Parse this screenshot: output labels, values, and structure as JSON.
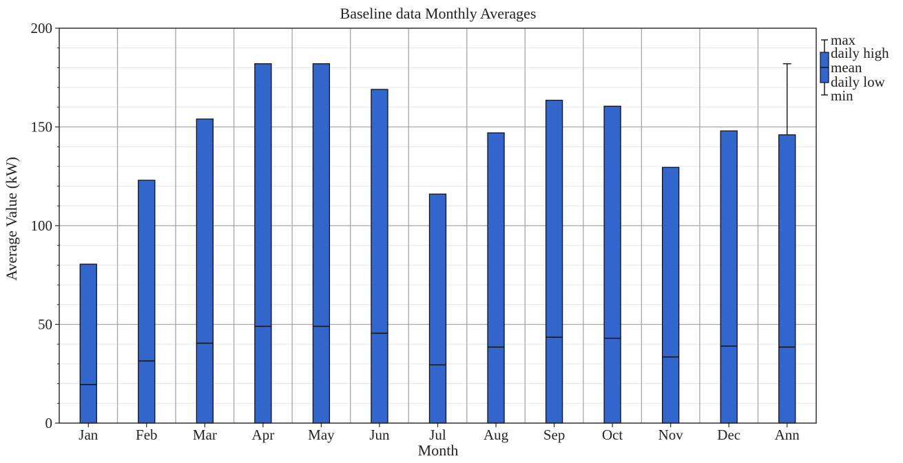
{
  "chart_data": {
    "type": "bar",
    "title": "Baseline data Monthly Averages",
    "xlabel": "Month",
    "ylabel": "Average Value (kW)",
    "ylim": [
      0,
      200
    ],
    "yticks": [
      0,
      50,
      100,
      150,
      200
    ],
    "grid": true,
    "legend_position": "right",
    "categories": [
      "Jan",
      "Feb",
      "Mar",
      "Apr",
      "May",
      "Jun",
      "Jul",
      "Aug",
      "Sep",
      "Oct",
      "Nov",
      "Dec",
      "Ann"
    ],
    "series": [
      {
        "name": "daily low",
        "values": [
          0,
          0,
          0,
          0,
          0,
          0,
          0,
          0,
          0,
          0,
          0,
          0,
          0
        ]
      },
      {
        "name": "mean",
        "values": [
          19.5,
          31.5,
          40.5,
          49,
          49,
          45.5,
          29.5,
          38.5,
          43.5,
          43,
          33.5,
          39,
          38.5
        ]
      },
      {
        "name": "daily high",
        "values": [
          80.5,
          123,
          154,
          182,
          182,
          169,
          116,
          147,
          163.5,
          160.5,
          129.5,
          148,
          146
        ]
      }
    ],
    "annual_whisker": {
      "category": "Ann",
      "max": 182,
      "min": 0
    },
    "legend_entries": [
      "max",
      "daily high",
      "mean",
      "daily low",
      "min"
    ],
    "colors": {
      "bar_fill": "#3366cc",
      "bar_stroke": "#111111",
      "grid": "#a6a6a6",
      "minor_grid": "#e6e6e6"
    }
  }
}
